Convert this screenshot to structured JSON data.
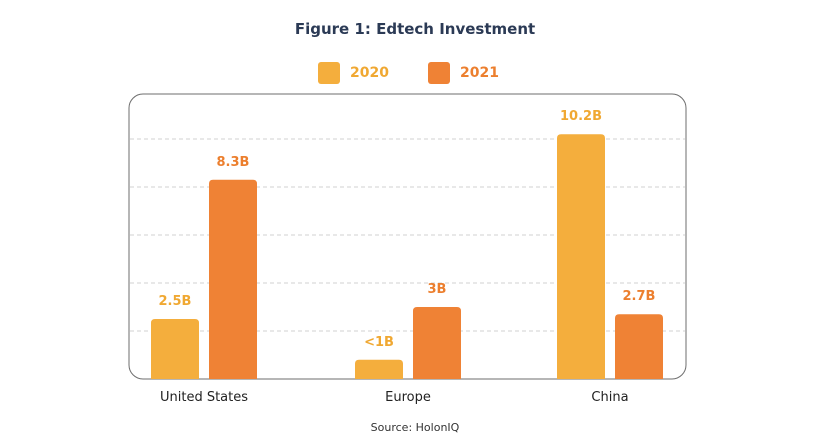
{
  "title": "Figure 1: Edtech Investment",
  "source": "Source: HolonIQ",
  "colors": {
    "2020": "#F4AE3D",
    "2021": "#EF8235",
    "label2020": "#F0A832",
    "label2021": "#EC7F2E"
  },
  "legend": [
    {
      "name": "2020",
      "color": "#F4AE3D"
    },
    {
      "name": "2021",
      "color": "#EF8235"
    }
  ],
  "chart_data": {
    "type": "bar",
    "title": "Figure 1: Edtech Investment",
    "categories": [
      "United States",
      "Europe",
      "China"
    ],
    "series": [
      {
        "name": "2020",
        "values": [
          2.5,
          0.8,
          10.2
        ],
        "labels": [
          "2.5B",
          "<1B",
          "10.2B"
        ]
      },
      {
        "name": "2021",
        "values": [
          8.3,
          3,
          2.7
        ],
        "labels": [
          "8.3B",
          "3B",
          "2.7B"
        ]
      }
    ],
    "ylim": [
      0,
      12
    ],
    "grid": true,
    "legend_position": "top-center"
  }
}
